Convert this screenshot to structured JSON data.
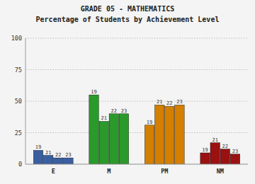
{
  "chart_data": {
    "type": "bar",
    "title": "GRADE 05 - MATHEMATICS",
    "subtitle": "Percentage of Students by Achievement Level",
    "categories": [
      "E",
      "M",
      "PM",
      "NM"
    ],
    "series": [
      {
        "name": "19",
        "values": [
          11,
          55,
          31,
          9
        ],
        "colors": [
          "#3a5fa0",
          "#2a9a2a",
          "#d47f00",
          "#9b1010"
        ]
      },
      {
        "name": "21",
        "values": [
          7,
          34,
          47,
          17
        ],
        "colors": [
          "#3a5fa0",
          "#2a9a2a",
          "#d47f00",
          "#9b1010"
        ]
      },
      {
        "name": "22",
        "values": [
          5,
          40,
          46,
          12
        ],
        "colors": [
          "#3a5fa0",
          "#2a9a2a",
          "#d47f00",
          "#9b1010"
        ]
      },
      {
        "name": "23",
        "values": [
          5,
          40,
          47,
          8
        ],
        "colors": [
          "#3a5fa0",
          "#2a9a2a",
          "#d47f00",
          "#9b1010"
        ]
      }
    ],
    "ylim": [
      0,
      100
    ],
    "yticks": [
      0,
      25,
      50,
      75,
      100
    ],
    "grid": true
  }
}
